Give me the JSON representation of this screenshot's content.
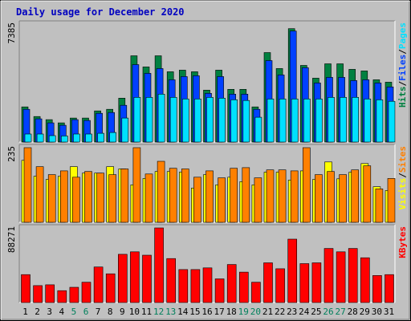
{
  "chart_data": {
    "type": "bar",
    "title": "Daily usage for December 2020",
    "categories": [
      "1",
      "2",
      "3",
      "4",
      "5",
      "6",
      "7",
      "8",
      "9",
      "10",
      "11",
      "12",
      "13",
      "14",
      "15",
      "16",
      "17",
      "18",
      "19",
      "20",
      "21",
      "22",
      "23",
      "24",
      "25",
      "26",
      "27",
      "28",
      "29",
      "30",
      "31"
    ],
    "weekend_days": [
      "5",
      "6",
      "12",
      "13",
      "19",
      "20",
      "26",
      "27"
    ],
    "colors": {
      "hits": "#008040",
      "files": "#0040ff",
      "pages": "#00e0ff",
      "visits": "#ffff00",
      "sites": "#ff8000",
      "kbytes": "#ff0000",
      "weekday_label": "#000000",
      "weekend_label": "#00805c",
      "title": "#0000c0",
      "background": "#c0c0c0",
      "panel": "#c0c0c0"
    },
    "panels": [
      {
        "id": "hits-panel",
        "max_label": "7385",
        "ymax": 7385,
        "legend": [
          {
            "text": "Hits",
            "color": "#008040"
          },
          {
            "text": "/",
            "color": "#000000"
          },
          {
            "text": "Files",
            "color": "#0040ff"
          },
          {
            "text": "/",
            "color": "#000000"
          },
          {
            "text": "Pages",
            "color": "#00e0ff"
          }
        ],
        "series": [
          {
            "name": "Hits",
            "color": "#008040",
            "values": [
              2200,
              1600,
              1400,
              1200,
              1500,
              1500,
              1950,
              2050,
              2750,
              5400,
              4700,
              5400,
              4400,
              4500,
              4400,
              3250,
              4500,
              3300,
              3300,
              2200,
              5600,
              4600,
              7100,
              4800,
              4000,
              4900,
              4900,
              4550,
              4450,
              3900,
              3750
            ]
          },
          {
            "name": "Files",
            "color": "#0040ff",
            "values": [
              2050,
              1450,
              1200,
              1050,
              1400,
              1350,
              1800,
              1850,
              2300,
              4850,
              4300,
              4600,
              3900,
              4100,
              4150,
              3050,
              4100,
              3000,
              3000,
              2050,
              5100,
              4200,
              6950,
              4650,
              3700,
              4050,
              4050,
              3850,
              3900,
              3700,
              3450
            ]
          },
          {
            "name": "Pages",
            "color": "#00e0ff",
            "values": [
              500,
              500,
              400,
              380,
              500,
              500,
              550,
              600,
              1500,
              2800,
              2800,
              3000,
              2800,
              2700,
              2700,
              2800,
              2750,
              2650,
              2600,
              1550,
              2700,
              2700,
              2700,
              2700,
              2700,
              2800,
              2800,
              2800,
              2700,
              2650,
              2550
            ]
          }
        ]
      },
      {
        "id": "visits-panel",
        "max_label": "235",
        "ymax": 235,
        "legend": [
          {
            "text": "Visits",
            "color": "#ffff00"
          },
          {
            "text": "/",
            "color": "#000000"
          },
          {
            "text": "Sites",
            "color": "#ff8000"
          }
        ],
        "series": [
          {
            "name": "Visits",
            "color": "#ffff00",
            "values": [
              195,
              145,
              135,
              145,
              175,
              155,
              155,
              175,
              168,
              118,
              138,
              160,
              160,
              158,
              108,
              150,
              118,
              142,
              128,
              118,
              158,
              158,
              133,
              162,
              135,
              190,
              137,
              158,
              185,
              112,
              100
            ]
          },
          {
            "name": "Sites",
            "color": "#ff8000",
            "values": [
              235,
              175,
              150,
              162,
              142,
              160,
              155,
              150,
              168,
              235,
              152,
              192,
              170,
              168,
              142,
              162,
              140,
              170,
              172,
              140,
              165,
              165,
              162,
              235,
              150,
              160,
              150,
              165,
              178,
              105,
              138
            ]
          }
        ]
      },
      {
        "id": "kbytes-panel",
        "max_label": "88271",
        "ymax": 88271,
        "legend": [
          {
            "text": "KBytes",
            "color": "#ff0000"
          }
        ],
        "series": [
          {
            "name": "KBytes",
            "color": "#ff0000",
            "values": [
              33000,
              20000,
              21000,
              14000,
              18000,
              24000,
              42000,
              34000,
              57000,
              60000,
              56000,
              88271,
              52000,
              39000,
              39000,
              41000,
              28000,
              45000,
              36000,
              24000,
              47000,
              40000,
              75000,
              46000,
              47000,
              64000,
              60000,
              64000,
              53000,
              32000,
              33000
            ]
          }
        ]
      }
    ]
  }
}
